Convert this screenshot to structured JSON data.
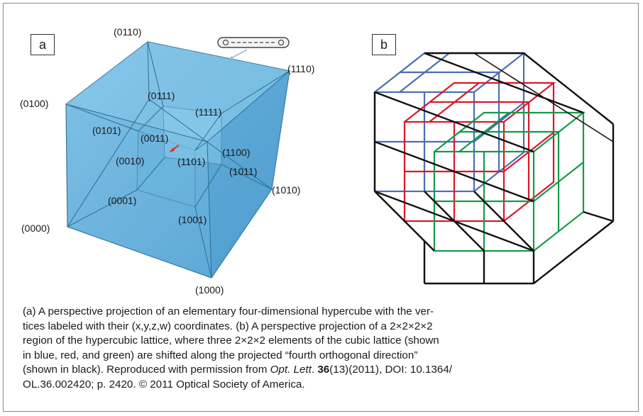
{
  "panels": {
    "a": {
      "tag": "a"
    },
    "b": {
      "tag": "b"
    }
  },
  "hypercube": {
    "vertex_labels": {
      "v0000": "(0000)",
      "v0001": "(0001)",
      "v0010": "(0010)",
      "v0011": "(0011)",
      "v0100": "(0100)",
      "v0101": "(0101)",
      "v0110": "(0110)",
      "v0111": "(0111)",
      "v1000": "(1000)",
      "v1001": "(1001)",
      "v1010": "(1010)",
      "v1011": "(1011)",
      "v1100": "(1100)",
      "v1101": "(1101)",
      "v1110": "(1110)",
      "v1111": "(1111)"
    },
    "colors": {
      "fill": "#5aaad8",
      "edge": "#2c6f95"
    }
  },
  "lattice": {
    "colors": {
      "blue": "#4a6fb0",
      "red": "#d8182a",
      "green": "#149a4a",
      "black": "#111111"
    }
  },
  "caption": {
    "p1": "(a) A perspective projection of an elementary four-dimensional hypercube with the ver-",
    "p2": "tices labeled with their (x,y,z,w) coordinates. (b) A perspective projection of a 2×2×2×2",
    "p3": "region of the hypercubic lattice, where three 2×2×2 elements of the cubic lattice (shown",
    "p4": "in blue, red, and green) are shifted along the projected “fourth orthogonal direction”",
    "p5": "(shown in black). Reproduced with permission from ",
    "journal": "Opt. Lett",
    "dot": ". ",
    "volume": "36",
    "p6": "(13)(2011), DOI: 10.1364/",
    "p7": "OL.36.002420; p. 2420. © 2011 Optical Society of America."
  }
}
